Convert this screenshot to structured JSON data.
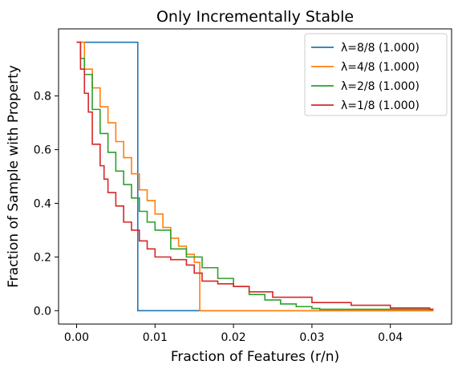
{
  "chart_data": {
    "type": "line",
    "title": "Only Incrementally Stable",
    "xlabel": "Fraction of Features (r/n)",
    "ylabel": "Fraction of Sample with Property",
    "xlim": [
      -0.0023,
      0.0478
    ],
    "ylim": [
      -0.05,
      1.05
    ],
    "xticks": [
      0.0,
      0.01,
      0.02,
      0.03,
      0.04
    ],
    "xtick_labels": [
      "0.00",
      "0.01",
      "0.02",
      "0.03",
      "0.04"
    ],
    "yticks": [
      0.0,
      0.2,
      0.4,
      0.6,
      0.8
    ],
    "ytick_labels": [
      "0.0",
      "0.2",
      "0.4",
      "0.6",
      "0.8"
    ],
    "grid": false,
    "legend_position": "top-right",
    "step": true,
    "series": [
      {
        "name": "λ=8/8 (1.000)",
        "color": "#1f77b4",
        "x": [
          0.0,
          0.0078,
          0.0078,
          0.0455
        ],
        "y": [
          1.0,
          1.0,
          0.0,
          0.0
        ]
      },
      {
        "name": "λ=4/8 (1.000)",
        "color": "#ff7f0e",
        "x": [
          0.0,
          0.001,
          0.002,
          0.003,
          0.004,
          0.005,
          0.006,
          0.007,
          0.008,
          0.009,
          0.01,
          0.011,
          0.012,
          0.013,
          0.014,
          0.015,
          0.0157,
          0.0157,
          0.0455
        ],
        "y": [
          1.0,
          0.9,
          0.83,
          0.76,
          0.7,
          0.63,
          0.57,
          0.51,
          0.45,
          0.41,
          0.36,
          0.31,
          0.27,
          0.24,
          0.21,
          0.18,
          0.14,
          0.0,
          0.0
        ]
      },
      {
        "name": "λ=2/8 (1.000)",
        "color": "#2ca02c",
        "x": [
          0.0,
          0.0005,
          0.001,
          0.002,
          0.003,
          0.004,
          0.005,
          0.006,
          0.007,
          0.008,
          0.009,
          0.01,
          0.012,
          0.014,
          0.016,
          0.018,
          0.02,
          0.022,
          0.024,
          0.026,
          0.028,
          0.03,
          0.031,
          0.0455
        ],
        "y": [
          1.0,
          0.94,
          0.88,
          0.75,
          0.66,
          0.59,
          0.52,
          0.47,
          0.42,
          0.37,
          0.33,
          0.3,
          0.23,
          0.2,
          0.16,
          0.12,
          0.09,
          0.06,
          0.04,
          0.025,
          0.015,
          0.008,
          0.005,
          0.005
        ]
      },
      {
        "name": "λ=1/8 (1.000)",
        "color": "#d62728",
        "x": [
          0.0,
          0.0005,
          0.001,
          0.0015,
          0.002,
          0.003,
          0.0035,
          0.004,
          0.005,
          0.006,
          0.007,
          0.008,
          0.009,
          0.01,
          0.012,
          0.014,
          0.015,
          0.016,
          0.018,
          0.02,
          0.022,
          0.025,
          0.03,
          0.035,
          0.04,
          0.045,
          0.0455
        ],
        "y": [
          1.0,
          0.9,
          0.81,
          0.74,
          0.62,
          0.54,
          0.49,
          0.44,
          0.39,
          0.33,
          0.3,
          0.26,
          0.23,
          0.2,
          0.19,
          0.17,
          0.14,
          0.11,
          0.1,
          0.09,
          0.07,
          0.05,
          0.03,
          0.02,
          0.01,
          0.005,
          0.005
        ]
      }
    ]
  }
}
